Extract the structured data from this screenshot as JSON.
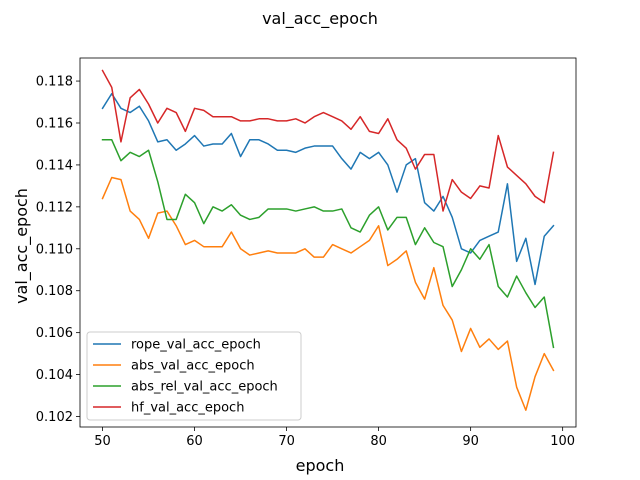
{
  "chart_data": {
    "type": "line",
    "title": "val_acc_epoch",
    "xlabel": "epoch",
    "ylabel": "val_acc_epoch",
    "xlim": [
      47.55,
      101.45
    ],
    "ylim": [
      0.1015,
      0.1191
    ],
    "xticks": [
      50,
      60,
      70,
      80,
      90,
      100
    ],
    "yticks": [
      0.102,
      0.104,
      0.106,
      0.108,
      0.11,
      0.112,
      0.114,
      0.116,
      0.118
    ],
    "grid": false,
    "legend_position": "lower-left",
    "x": [
      50,
      51,
      52,
      53,
      54,
      55,
      56,
      57,
      58,
      59,
      60,
      61,
      62,
      63,
      64,
      65,
      66,
      67,
      68,
      69,
      70,
      71,
      72,
      73,
      74,
      75,
      76,
      77,
      78,
      79,
      80,
      81,
      82,
      83,
      84,
      85,
      86,
      87,
      88,
      89,
      90,
      91,
      92,
      93,
      94,
      95,
      96,
      97,
      98,
      99
    ],
    "series": [
      {
        "name": "rope_val_acc_epoch",
        "color": "#1f77b4",
        "values": [
          0.1167,
          0.1174,
          0.1167,
          0.1165,
          0.1168,
          0.1161,
          0.1151,
          0.1152,
          0.1147,
          0.115,
          0.1154,
          0.1149,
          0.115,
          0.115,
          0.1155,
          0.1144,
          0.1152,
          0.1152,
          0.115,
          0.1147,
          0.1147,
          0.1146,
          0.1148,
          0.1149,
          0.1149,
          0.1149,
          0.1143,
          0.1138,
          0.1146,
          0.1143,
          0.1146,
          0.114,
          0.1127,
          0.114,
          0.1143,
          0.1122,
          0.1118,
          0.1125,
          0.1115,
          0.11,
          0.1098,
          0.1104,
          0.1106,
          0.1108,
          0.1131,
          0.1094,
          0.1105,
          0.1083,
          0.1106,
          0.1111
        ]
      },
      {
        "name": "abs_val_acc_epoch",
        "color": "#ff7f0e",
        "values": [
          0.1124,
          0.1134,
          0.1133,
          0.1118,
          0.1114,
          0.1105,
          0.1117,
          0.1118,
          0.1111,
          0.1102,
          0.1104,
          0.1101,
          0.1101,
          0.1101,
          0.1108,
          0.11,
          0.1097,
          0.1098,
          0.1099,
          0.1098,
          0.1098,
          0.1098,
          0.11,
          0.1096,
          0.1096,
          0.1102,
          0.11,
          0.1098,
          0.1101,
          0.1104,
          0.1111,
          0.1092,
          0.1095,
          0.1099,
          0.1084,
          0.1076,
          0.1091,
          0.1073,
          0.1066,
          0.1051,
          0.1062,
          0.1053,
          0.1057,
          0.1052,
          0.1056,
          0.1034,
          0.1023,
          0.1039,
          0.105,
          0.1042
        ]
      },
      {
        "name": "abs_rel_val_acc_epoch",
        "color": "#2ca02c",
        "values": [
          0.1152,
          0.1152,
          0.1142,
          0.1146,
          0.1144,
          0.1147,
          0.1132,
          0.1114,
          0.1114,
          0.1126,
          0.1122,
          0.1112,
          0.112,
          0.1118,
          0.1121,
          0.1116,
          0.1114,
          0.1115,
          0.1119,
          0.1119,
          0.1119,
          0.1118,
          0.1119,
          0.112,
          0.1118,
          0.1118,
          0.1119,
          0.111,
          0.1108,
          0.1116,
          0.112,
          0.1109,
          0.1115,
          0.1115,
          0.1102,
          0.111,
          0.1103,
          0.1101,
          0.1082,
          0.109,
          0.11,
          0.1095,
          0.1102,
          0.1082,
          0.1077,
          0.1087,
          0.1079,
          0.1072,
          0.1077,
          0.1053
        ]
      },
      {
        "name": "hf_val_acc_epoch",
        "color": "#d62728",
        "values": [
          0.1185,
          0.1177,
          0.1151,
          0.1172,
          0.1176,
          0.1169,
          0.116,
          0.1167,
          0.1165,
          0.1156,
          0.1167,
          0.1166,
          0.1163,
          0.1163,
          0.1163,
          0.1161,
          0.1161,
          0.1162,
          0.1162,
          0.1161,
          0.1161,
          0.1162,
          0.116,
          0.1163,
          0.1165,
          0.1163,
          0.1161,
          0.1157,
          0.1163,
          0.1156,
          0.1155,
          0.1162,
          0.1152,
          0.1148,
          0.1138,
          0.1145,
          0.1145,
          0.1118,
          0.1133,
          0.1127,
          0.1124,
          0.113,
          0.1129,
          0.1154,
          0.1139,
          0.1135,
          0.1131,
          0.1125,
          0.1122,
          0.1146
        ]
      }
    ]
  }
}
